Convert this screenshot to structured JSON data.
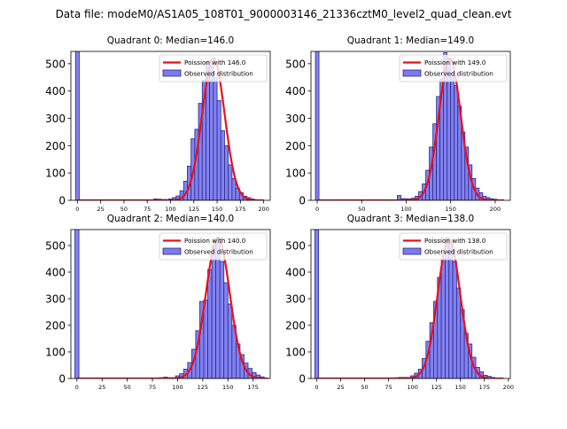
{
  "suptitle": "Data file: modeM0/AS1A05_108T01_9000003146_21336cztM0_level2_quad_clean.evt",
  "colors": {
    "bar_fill": "#7b7bf0",
    "bar_edge": "#2a2a8a",
    "curve": "#e8111b"
  },
  "chart_data": [
    {
      "type": "bar",
      "title": "Quadrant 0: Median=146.0",
      "legend": {
        "curve_label": "Poission with 146.0",
        "bar_label": "Observed distribution",
        "placement": "upper right"
      },
      "xlim": [
        -7,
        207
      ],
      "ylim": [
        0,
        545
      ],
      "xticks": [
        0,
        25,
        50,
        75,
        100,
        125,
        150,
        175,
        200
      ],
      "yticks": [
        0,
        100,
        200,
        300,
        400,
        500
      ],
      "bin_width": 4,
      "bars": [
        {
          "x": 0,
          "h": 600
        },
        {
          "x": 84,
          "h": 5
        },
        {
          "x": 88,
          "h": 4
        },
        {
          "x": 92,
          "h": 3
        },
        {
          "x": 96,
          "h": 3
        },
        {
          "x": 100,
          "h": 5
        },
        {
          "x": 104,
          "h": 10
        },
        {
          "x": 108,
          "h": 16
        },
        {
          "x": 112,
          "h": 35
        },
        {
          "x": 116,
          "h": 70
        },
        {
          "x": 120,
          "h": 125
        },
        {
          "x": 124,
          "h": 225
        },
        {
          "x": 128,
          "h": 260
        },
        {
          "x": 132,
          "h": 355
        },
        {
          "x": 136,
          "h": 440
        },
        {
          "x": 140,
          "h": 510
        },
        {
          "x": 144,
          "h": 500
        },
        {
          "x": 148,
          "h": 450
        },
        {
          "x": 152,
          "h": 365
        },
        {
          "x": 156,
          "h": 255
        },
        {
          "x": 160,
          "h": 200
        },
        {
          "x": 164,
          "h": 130
        },
        {
          "x": 168,
          "h": 80
        },
        {
          "x": 172,
          "h": 45
        },
        {
          "x": 176,
          "h": 28
        },
        {
          "x": 180,
          "h": 15
        },
        {
          "x": 184,
          "h": 10
        },
        {
          "x": 188,
          "h": 5
        }
      ],
      "curve": {
        "mean": 146,
        "peak": 520,
        "x_range": [
          0,
          200
        ]
      }
    },
    {
      "type": "bar",
      "title": "Quadrant 1: Median=149.0",
      "legend": {
        "curve_label": "Poission with 149.0",
        "bar_label": "Observed distribution",
        "placement": "upper right"
      },
      "xlim": [
        -7,
        217
      ],
      "ylim": [
        0,
        545
      ],
      "xticks": [
        0,
        50,
        100,
        150,
        200
      ],
      "yticks": [
        0,
        100,
        200,
        300,
        400,
        500
      ],
      "bin_width": 4,
      "bars": [
        {
          "x": 0,
          "h": 600
        },
        {
          "x": 92,
          "h": 18
        },
        {
          "x": 96,
          "h": 6
        },
        {
          "x": 100,
          "h": 6
        },
        {
          "x": 104,
          "h": 5
        },
        {
          "x": 108,
          "h": 8
        },
        {
          "x": 112,
          "h": 15
        },
        {
          "x": 116,
          "h": 32
        },
        {
          "x": 120,
          "h": 60
        },
        {
          "x": 124,
          "h": 110
        },
        {
          "x": 128,
          "h": 195
        },
        {
          "x": 132,
          "h": 280
        },
        {
          "x": 136,
          "h": 380
        },
        {
          "x": 140,
          "h": 445
        },
        {
          "x": 144,
          "h": 540
        },
        {
          "x": 148,
          "h": 520
        },
        {
          "x": 152,
          "h": 465
        },
        {
          "x": 156,
          "h": 420
        },
        {
          "x": 160,
          "h": 345
        },
        {
          "x": 164,
          "h": 250
        },
        {
          "x": 168,
          "h": 195
        },
        {
          "x": 172,
          "h": 130
        },
        {
          "x": 176,
          "h": 80
        },
        {
          "x": 180,
          "h": 45
        },
        {
          "x": 184,
          "h": 28
        },
        {
          "x": 188,
          "h": 15
        },
        {
          "x": 192,
          "h": 10
        },
        {
          "x": 196,
          "h": 6
        },
        {
          "x": 200,
          "h": 4
        }
      ],
      "curve": {
        "mean": 149,
        "peak": 520,
        "x_range": [
          0,
          210
        ]
      }
    },
    {
      "type": "bar",
      "title": "Quadrant 2: Median=140.0",
      "legend": {
        "curve_label": "Poission with 140.0",
        "bar_label": "Observed distribution",
        "placement": "upper right"
      },
      "xlim": [
        -6,
        192
      ],
      "ylim": [
        0,
        560
      ],
      "xticks": [
        0,
        25,
        50,
        75,
        100,
        125,
        150,
        175
      ],
      "yticks": [
        0,
        100,
        200,
        300,
        400,
        500
      ],
      "bin_width": 4,
      "bars": [
        {
          "x": 0,
          "h": 600
        },
        {
          "x": 84,
          "h": 3
        },
        {
          "x": 88,
          "h": 5
        },
        {
          "x": 92,
          "h": 3
        },
        {
          "x": 96,
          "h": 3
        },
        {
          "x": 100,
          "h": 10
        },
        {
          "x": 104,
          "h": 18
        },
        {
          "x": 108,
          "h": 35
        },
        {
          "x": 112,
          "h": 60
        },
        {
          "x": 116,
          "h": 110
        },
        {
          "x": 120,
          "h": 180
        },
        {
          "x": 124,
          "h": 290
        },
        {
          "x": 128,
          "h": 295
        },
        {
          "x": 132,
          "h": 410
        },
        {
          "x": 136,
          "h": 500
        },
        {
          "x": 140,
          "h": 510
        },
        {
          "x": 144,
          "h": 440
        },
        {
          "x": 148,
          "h": 360
        },
        {
          "x": 152,
          "h": 280
        },
        {
          "x": 156,
          "h": 200
        },
        {
          "x": 160,
          "h": 130
        },
        {
          "x": 164,
          "h": 90
        },
        {
          "x": 168,
          "h": 58
        },
        {
          "x": 172,
          "h": 38
        },
        {
          "x": 176,
          "h": 22
        },
        {
          "x": 180,
          "h": 13
        },
        {
          "x": 184,
          "h": 6
        }
      ],
      "curve": {
        "mean": 140,
        "peak": 530,
        "x_range": [
          0,
          190
        ]
      }
    },
    {
      "type": "bar",
      "title": "Quadrant 3: Median=138.0",
      "legend": {
        "curve_label": "Poission with 138.0",
        "bar_label": "Observed distribution",
        "placement": "upper right"
      },
      "xlim": [
        -6,
        202
      ],
      "ylim": [
        0,
        560
      ],
      "xticks": [
        0,
        25,
        50,
        75,
        100,
        125,
        150,
        175,
        200
      ],
      "yticks": [
        0,
        100,
        200,
        300,
        400,
        500
      ],
      "bin_width": 4,
      "bars": [
        {
          "x": 0,
          "h": 600
        },
        {
          "x": 84,
          "h": 3
        },
        {
          "x": 88,
          "h": 4
        },
        {
          "x": 92,
          "h": 4
        },
        {
          "x": 96,
          "h": 4
        },
        {
          "x": 100,
          "h": 10
        },
        {
          "x": 104,
          "h": 20
        },
        {
          "x": 108,
          "h": 35
        },
        {
          "x": 112,
          "h": 75
        },
        {
          "x": 116,
          "h": 140
        },
        {
          "x": 120,
          "h": 210
        },
        {
          "x": 124,
          "h": 290
        },
        {
          "x": 128,
          "h": 380
        },
        {
          "x": 132,
          "h": 450
        },
        {
          "x": 136,
          "h": 530
        },
        {
          "x": 140,
          "h": 510
        },
        {
          "x": 144,
          "h": 440
        },
        {
          "x": 148,
          "h": 340
        },
        {
          "x": 152,
          "h": 260
        },
        {
          "x": 156,
          "h": 170
        },
        {
          "x": 160,
          "h": 130
        },
        {
          "x": 164,
          "h": 80
        },
        {
          "x": 168,
          "h": 42
        },
        {
          "x": 172,
          "h": 25
        },
        {
          "x": 176,
          "h": 12
        },
        {
          "x": 180,
          "h": 8
        },
        {
          "x": 184,
          "h": 4
        }
      ],
      "curve": {
        "mean": 138,
        "peak": 525,
        "x_range": [
          0,
          195
        ]
      }
    }
  ]
}
